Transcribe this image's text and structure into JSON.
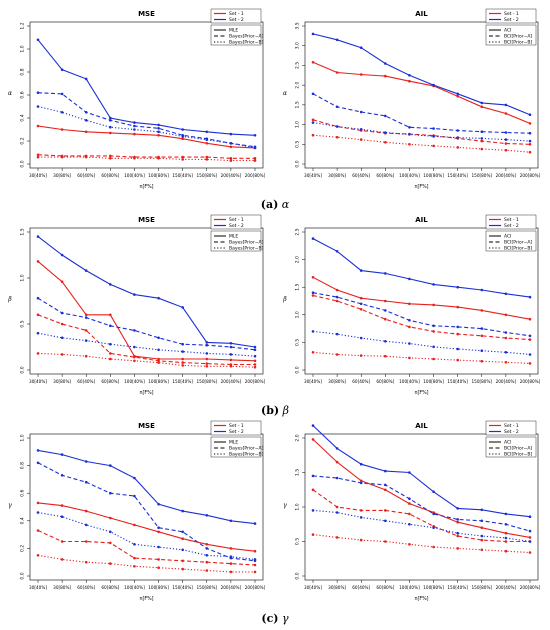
{
  "x_categories": [
    "30[40%]",
    "30[80%]",
    "60[40%]",
    "60[80%]",
    "100[40%]",
    "100[80%]",
    "150[40%]",
    "150[80%]",
    "200[40%]",
    "200[80%]"
  ],
  "x_axis_label": "n[F%]",
  "colors": {
    "set1": "#e8201b",
    "set2": "#1a2fd6",
    "black": "#000000"
  },
  "rows": [
    {
      "caption_letter": "(a)",
      "caption_symbol": "α",
      "param": "α"
    },
    {
      "caption_letter": "(b)",
      "caption_symbol": "β",
      "param": "β"
    },
    {
      "caption_letter": "(c)",
      "caption_symbol": "γ",
      "param": "γ"
    }
  ],
  "legend_sets": {
    "mse": [
      "Set - 1",
      "Set - 2"
    ],
    "ail": [
      "Set - 1",
      "Set - 2"
    ]
  },
  "legend_methods": {
    "mse": [
      "MLE",
      "Bayes[Prior−A]",
      "Bayes[Prior−B]"
    ],
    "ail": [
      "ACI",
      "BCI[Prior−A]",
      "BCI[Prior−B]"
    ]
  },
  "chart_data": [
    {
      "type": "line",
      "title": "MSE",
      "ylabel": "α",
      "xlabel": "n[F%]",
      "ylim": [
        0,
        1.2
      ],
      "yticks": [
        0.0,
        0.2,
        0.4,
        0.6,
        0.8,
        1.0,
        1.2
      ],
      "series": [
        {
          "name": "Set - 1",
          "method": "MLE",
          "color": "red",
          "style": "solid",
          "values": [
            0.33,
            0.3,
            0.28,
            0.27,
            0.26,
            0.25,
            0.22,
            0.18,
            0.15,
            0.14
          ]
        },
        {
          "name": "Set - 1",
          "method": "Bayes[Prior−A]",
          "color": "red",
          "style": "dashed",
          "values": [
            0.08,
            0.07,
            0.07,
            0.07,
            0.06,
            0.06,
            0.06,
            0.06,
            0.05,
            0.05
          ]
        },
        {
          "name": "Set - 1",
          "method": "Bayes[Prior−B]",
          "color": "red",
          "style": "dotted",
          "values": [
            0.06,
            0.06,
            0.06,
            0.05,
            0.05,
            0.05,
            0.04,
            0.04,
            0.03,
            0.03
          ]
        },
        {
          "name": "Set - 2",
          "method": "MLE",
          "color": "blue",
          "style": "solid",
          "values": [
            1.08,
            0.82,
            0.74,
            0.4,
            0.36,
            0.34,
            0.3,
            0.28,
            0.26,
            0.25
          ]
        },
        {
          "name": "Set - 2",
          "method": "Bayes[Prior−A]",
          "color": "blue",
          "style": "dashed",
          "values": [
            0.62,
            0.61,
            0.45,
            0.38,
            0.33,
            0.31,
            0.25,
            0.22,
            0.18,
            0.15
          ]
        },
        {
          "name": "Set - 2",
          "method": "Bayes[Prior−B]",
          "color": "blue",
          "style": "dotted",
          "values": [
            0.5,
            0.45,
            0.38,
            0.32,
            0.3,
            0.28,
            0.24,
            0.21,
            0.18,
            0.14
          ]
        }
      ]
    },
    {
      "type": "line",
      "title": "AIL",
      "ylabel": "α",
      "xlabel": "n[F%]",
      "ylim": [
        0,
        3.5
      ],
      "yticks": [
        0.0,
        0.5,
        1.0,
        1.5,
        2.0,
        2.5,
        3.0,
        3.5
      ],
      "series": [
        {
          "name": "Set - 1",
          "method": "ACI",
          "color": "red",
          "style": "solid",
          "values": [
            2.58,
            2.32,
            2.27,
            2.23,
            2.1,
            1.98,
            1.72,
            1.45,
            1.28,
            1.03
          ]
        },
        {
          "name": "Set - 1",
          "method": "BCI[Prior−A]",
          "color": "red",
          "style": "dashed",
          "values": [
            1.12,
            0.95,
            0.85,
            0.78,
            0.76,
            0.72,
            0.65,
            0.58,
            0.52,
            0.5
          ]
        },
        {
          "name": "Set - 1",
          "method": "BCI[Prior−B]",
          "color": "red",
          "style": "dotted",
          "values": [
            0.73,
            0.68,
            0.62,
            0.55,
            0.5,
            0.46,
            0.42,
            0.38,
            0.35,
            0.3
          ]
        },
        {
          "name": "Set - 2",
          "method": "ACI",
          "color": "blue",
          "style": "solid",
          "values": [
            3.3,
            3.15,
            2.95,
            2.55,
            2.25,
            2.0,
            1.78,
            1.55,
            1.5,
            1.25
          ]
        },
        {
          "name": "Set - 2",
          "method": "BCI[Prior−A]",
          "color": "blue",
          "style": "dashed",
          "values": [
            1.78,
            1.45,
            1.32,
            1.22,
            0.93,
            0.9,
            0.85,
            0.82,
            0.8,
            0.78
          ]
        },
        {
          "name": "Set - 2",
          "method": "BCI[Prior−B]",
          "color": "blue",
          "style": "dotted",
          "values": [
            1.05,
            0.95,
            0.88,
            0.8,
            0.75,
            0.7,
            0.67,
            0.65,
            0.62,
            0.58
          ]
        }
      ]
    },
    {
      "type": "line",
      "title": "MSE",
      "ylabel": "β",
      "xlabel": "n[F%]",
      "ylim": [
        0,
        1.5
      ],
      "yticks": [
        0.0,
        0.5,
        1.0,
        1.5
      ],
      "series": [
        {
          "name": "Set - 1",
          "method": "MLE",
          "color": "red",
          "style": "solid",
          "values": [
            1.18,
            0.96,
            0.6,
            0.6,
            0.15,
            0.12,
            0.12,
            0.12,
            0.11,
            0.1
          ]
        },
        {
          "name": "Set - 1",
          "method": "Bayes[Prior−A]",
          "color": "red",
          "style": "dashed",
          "values": [
            0.6,
            0.5,
            0.43,
            0.18,
            0.14,
            0.1,
            0.08,
            0.07,
            0.06,
            0.06
          ]
        },
        {
          "name": "Set - 1",
          "method": "Bayes[Prior−B]",
          "color": "red",
          "style": "dotted",
          "values": [
            0.18,
            0.17,
            0.15,
            0.12,
            0.1,
            0.08,
            0.05,
            0.04,
            0.04,
            0.03
          ]
        },
        {
          "name": "Set - 2",
          "method": "MLE",
          "color": "blue",
          "style": "solid",
          "values": [
            1.45,
            1.25,
            1.08,
            0.93,
            0.82,
            0.78,
            0.68,
            0.3,
            0.29,
            0.25
          ]
        },
        {
          "name": "Set - 2",
          "method": "Bayes[Prior−A]",
          "color": "blue",
          "style": "dashed",
          "values": [
            0.78,
            0.62,
            0.57,
            0.48,
            0.43,
            0.35,
            0.28,
            0.27,
            0.25,
            0.22
          ]
        },
        {
          "name": "Set - 2",
          "method": "Bayes[Prior−B]",
          "color": "blue",
          "style": "dotted",
          "values": [
            0.4,
            0.35,
            0.32,
            0.28,
            0.25,
            0.22,
            0.2,
            0.18,
            0.17,
            0.15
          ]
        }
      ]
    },
    {
      "type": "line",
      "title": "AIL",
      "ylabel": "β",
      "xlabel": "n[F%]",
      "ylim": [
        0,
        2.5
      ],
      "yticks": [
        0.0,
        0.5,
        1.0,
        1.5,
        2.0,
        2.5
      ],
      "series": [
        {
          "name": "Set - 1",
          "method": "ACI",
          "color": "red",
          "style": "solid",
          "values": [
            1.68,
            1.45,
            1.3,
            1.25,
            1.2,
            1.18,
            1.14,
            1.08,
            1.0,
            0.92
          ]
        },
        {
          "name": "Set - 1",
          "method": "BCI[Prior−A]",
          "color": "red",
          "style": "dashed",
          "values": [
            1.35,
            1.25,
            1.1,
            0.92,
            0.78,
            0.7,
            0.65,
            0.62,
            0.58,
            0.55
          ]
        },
        {
          "name": "Set - 1",
          "method": "BCI[Prior−B]",
          "color": "red",
          "style": "dotted",
          "values": [
            0.32,
            0.28,
            0.26,
            0.25,
            0.22,
            0.2,
            0.18,
            0.16,
            0.14,
            0.12
          ]
        },
        {
          "name": "Set - 2",
          "method": "ACI",
          "color": "blue",
          "style": "solid",
          "values": [
            2.38,
            2.15,
            1.8,
            1.75,
            1.65,
            1.55,
            1.5,
            1.45,
            1.38,
            1.32
          ]
        },
        {
          "name": "Set - 2",
          "method": "BCI[Prior−A]",
          "color": "blue",
          "style": "dashed",
          "values": [
            1.4,
            1.32,
            1.2,
            1.08,
            0.9,
            0.8,
            0.78,
            0.75,
            0.68,
            0.62
          ]
        },
        {
          "name": "Set - 2",
          "method": "BCI[Prior−B]",
          "color": "blue",
          "style": "dotted",
          "values": [
            0.7,
            0.65,
            0.58,
            0.52,
            0.48,
            0.42,
            0.38,
            0.35,
            0.32,
            0.28
          ]
        }
      ]
    },
    {
      "type": "line",
      "title": "MSE",
      "ylabel": "γ",
      "xlabel": "n[F%]",
      "ylim": [
        0,
        1.0
      ],
      "yticks": [
        0.0,
        0.2,
        0.4,
        0.6,
        0.8,
        1.0
      ],
      "series": [
        {
          "name": "Set - 1",
          "method": "MLE",
          "color": "red",
          "style": "solid",
          "values": [
            0.53,
            0.51,
            0.47,
            0.42,
            0.37,
            0.32,
            0.27,
            0.23,
            0.2,
            0.18
          ]
        },
        {
          "name": "Set - 1",
          "method": "Bayes[Prior−A]",
          "color": "red",
          "style": "dashed",
          "values": [
            0.33,
            0.25,
            0.25,
            0.24,
            0.13,
            0.12,
            0.11,
            0.1,
            0.09,
            0.08
          ]
        },
        {
          "name": "Set - 1",
          "method": "Bayes[Prior−B]",
          "color": "red",
          "style": "dotted",
          "values": [
            0.15,
            0.12,
            0.1,
            0.09,
            0.07,
            0.06,
            0.05,
            0.04,
            0.03,
            0.03
          ]
        },
        {
          "name": "Set - 2",
          "method": "MLE",
          "color": "blue",
          "style": "solid",
          "values": [
            0.91,
            0.88,
            0.83,
            0.8,
            0.71,
            0.52,
            0.47,
            0.44,
            0.4,
            0.38
          ]
        },
        {
          "name": "Set - 2",
          "method": "Bayes[Prior−A]",
          "color": "blue",
          "style": "dashed",
          "values": [
            0.82,
            0.73,
            0.68,
            0.6,
            0.58,
            0.35,
            0.32,
            0.2,
            0.13,
            0.11
          ]
        },
        {
          "name": "Set - 2",
          "method": "Bayes[Prior−B]",
          "color": "blue",
          "style": "dotted",
          "values": [
            0.46,
            0.43,
            0.37,
            0.32,
            0.23,
            0.21,
            0.19,
            0.15,
            0.14,
            0.12
          ]
        }
      ]
    },
    {
      "type": "line",
      "title": "AIL",
      "ylabel": "γ",
      "xlabel": "n[F%]",
      "ylim": [
        0,
        2.0
      ],
      "yticks": [
        0.0,
        0.5,
        1.0,
        1.5,
        2.0
      ],
      "series": [
        {
          "name": "Set - 1",
          "method": "ACI",
          "color": "red",
          "style": "solid",
          "values": [
            1.98,
            1.65,
            1.38,
            1.25,
            1.05,
            0.92,
            0.78,
            0.7,
            0.62,
            0.56
          ]
        },
        {
          "name": "Set - 1",
          "method": "BCI[Prior−A]",
          "color": "red",
          "style": "dashed",
          "values": [
            1.25,
            1.0,
            0.95,
            0.95,
            0.9,
            0.72,
            0.58,
            0.52,
            0.5,
            0.5
          ]
        },
        {
          "name": "Set - 1",
          "method": "BCI[Prior−B]",
          "color": "red",
          "style": "dotted",
          "values": [
            0.6,
            0.56,
            0.52,
            0.5,
            0.46,
            0.42,
            0.4,
            0.38,
            0.36,
            0.34
          ]
        },
        {
          "name": "Set - 2",
          "method": "ACI",
          "color": "blue",
          "style": "solid",
          "values": [
            2.18,
            1.85,
            1.62,
            1.52,
            1.5,
            1.22,
            0.98,
            0.96,
            0.9,
            0.86
          ]
        },
        {
          "name": "Set - 2",
          "method": "BCI[Prior−A]",
          "color": "blue",
          "style": "dashed",
          "values": [
            1.45,
            1.42,
            1.35,
            1.32,
            1.12,
            0.9,
            0.82,
            0.8,
            0.75,
            0.65
          ]
        },
        {
          "name": "Set - 2",
          "method": "BCI[Prior−B]",
          "color": "blue",
          "style": "dotted",
          "values": [
            0.95,
            0.92,
            0.85,
            0.8,
            0.75,
            0.7,
            0.62,
            0.58,
            0.55,
            0.5
          ]
        }
      ]
    }
  ]
}
